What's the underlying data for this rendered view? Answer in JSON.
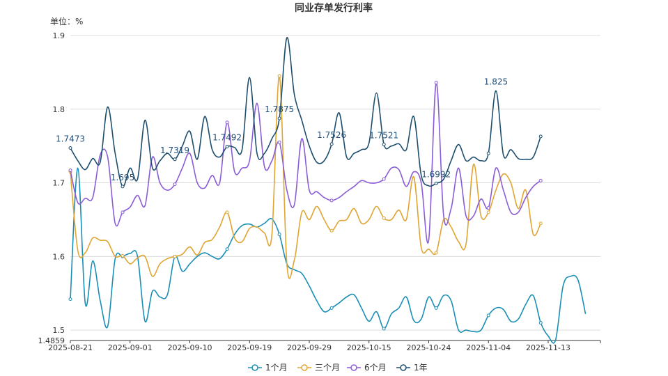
{
  "chart_data": {
    "type": "line",
    "title": "同业存单发行利率",
    "unit_label": "单位：%",
    "y_ticks": [
      "1.4859",
      "1.5",
      "1.6",
      "1.7",
      "1.8",
      "1.9"
    ],
    "ylim": [
      1.4859,
      1.9
    ],
    "x_tick_labels": [
      "2025-08-21",
      "2025-09-01",
      "2025-09-10",
      "2025-09-19",
      "2025-09-29",
      "2025-10-15",
      "2025-10-24",
      "2025-11-04",
      "2025-11-13"
    ],
    "x_tick_indices": [
      0,
      8,
      16,
      24,
      32,
      40,
      48,
      56,
      64
    ],
    "x_count": 72,
    "grid": true,
    "legend_position": "bottom",
    "series": [
      {
        "name": "1个月",
        "color": "#1a8fb5",
        "values": [
          1.542,
          1.72,
          1.536,
          1.594,
          1.54,
          1.505,
          1.597,
          1.6,
          1.604,
          1.6,
          1.512,
          1.553,
          1.545,
          1.548,
          1.6,
          1.58,
          1.59,
          1.6,
          1.605,
          1.6,
          1.597,
          1.61,
          1.63,
          1.642,
          1.644,
          1.64,
          1.645,
          1.651,
          1.63,
          1.59,
          1.582,
          1.577,
          1.56,
          1.54,
          1.525,
          1.53,
          1.537,
          1.545,
          1.548,
          1.53,
          1.512,
          1.525,
          1.502,
          1.522,
          1.53,
          1.545,
          1.513,
          1.515,
          1.545,
          1.53,
          1.547,
          1.54,
          1.5,
          1.5,
          1.498,
          1.5,
          1.52,
          1.53,
          1.528,
          1.512,
          1.515,
          1.535,
          1.547,
          1.51,
          1.492,
          1.487,
          1.56,
          1.573,
          1.568,
          1.522
        ]
      },
      {
        "name": "三个月",
        "color": "#e0a531",
        "values": [
          1.715,
          1.608,
          1.605,
          1.625,
          1.622,
          1.62,
          1.6,
          1.601,
          1.59,
          1.598,
          1.6,
          1.573,
          1.59,
          1.597,
          1.6,
          1.603,
          1.613,
          1.602,
          1.619,
          1.623,
          1.64,
          1.66,
          1.625,
          1.62,
          1.638,
          1.64,
          1.632,
          1.63,
          1.845,
          1.59,
          1.595,
          1.66,
          1.65,
          1.668,
          1.65,
          1.635,
          1.648,
          1.65,
          1.665,
          1.645,
          1.65,
          1.668,
          1.652,
          1.65,
          1.663,
          1.65,
          1.708,
          1.612,
          1.61,
          1.605,
          1.65,
          1.64,
          1.62,
          1.617,
          1.725,
          1.655,
          1.66,
          1.69,
          1.712,
          1.7,
          1.665,
          1.69,
          1.63,
          1.645
        ]
      },
      {
        "name": "6个月",
        "color": "#8a5cd6",
        "values": [
          1.717,
          1.673,
          1.679,
          1.68,
          1.738,
          1.735,
          1.645,
          1.66,
          1.667,
          1.683,
          1.669,
          1.735,
          1.7,
          1.69,
          1.698,
          1.72,
          1.74,
          1.7,
          1.693,
          1.71,
          1.7,
          1.782,
          1.715,
          1.72,
          1.73,
          1.808,
          1.722,
          1.73,
          1.755,
          1.69,
          1.67,
          1.76,
          1.69,
          1.688,
          1.68,
          1.676,
          1.68,
          1.688,
          1.695,
          1.703,
          1.7,
          1.7,
          1.705,
          1.72,
          1.718,
          1.695,
          1.715,
          1.7,
          1.622,
          1.836,
          1.655,
          1.665,
          1.72,
          1.655,
          1.655,
          1.678,
          1.666,
          1.72,
          1.69,
          1.66,
          1.66,
          1.68,
          1.695,
          1.703
        ]
      },
      {
        "name": "1年",
        "color": "#1d4e6e",
        "values": [
          1.7473,
          1.73,
          1.718,
          1.733,
          1.728,
          1.803,
          1.74,
          1.695,
          1.72,
          1.705,
          1.785,
          1.72,
          1.73,
          1.74,
          1.7319,
          1.75,
          1.77,
          1.732,
          1.79,
          1.745,
          1.735,
          1.7492,
          1.748,
          1.745,
          1.843,
          1.74,
          1.74,
          1.76,
          1.7875,
          1.897,
          1.82,
          1.785,
          1.75,
          1.728,
          1.73,
          1.7526,
          1.795,
          1.735,
          1.74,
          1.745,
          1.754,
          1.822,
          1.7521,
          1.75,
          1.753,
          1.745,
          1.79,
          1.71,
          1.696,
          1.6992,
          1.705,
          1.73,
          1.752,
          1.73,
          1.735,
          1.73,
          1.74,
          1.825,
          1.738,
          1.745,
          1.733,
          1.732,
          1.735,
          1.763
        ]
      }
    ],
    "annotations": [
      {
        "label": "1.7473",
        "series": 3,
        "index": 0
      },
      {
        "label": "1.695",
        "series": 3,
        "index": 7
      },
      {
        "label": "1.7319",
        "series": 3,
        "index": 14
      },
      {
        "label": "1.7492",
        "series": 3,
        "index": 21
      },
      {
        "label": "1.7875",
        "series": 3,
        "index": 28
      },
      {
        "label": "1.7526",
        "series": 3,
        "index": 35
      },
      {
        "label": "1.7521",
        "series": 3,
        "index": 42
      },
      {
        "label": "1.6992",
        "series": 3,
        "index": 49
      },
      {
        "label": "1.825",
        "series": 3,
        "index": 57
      }
    ]
  }
}
